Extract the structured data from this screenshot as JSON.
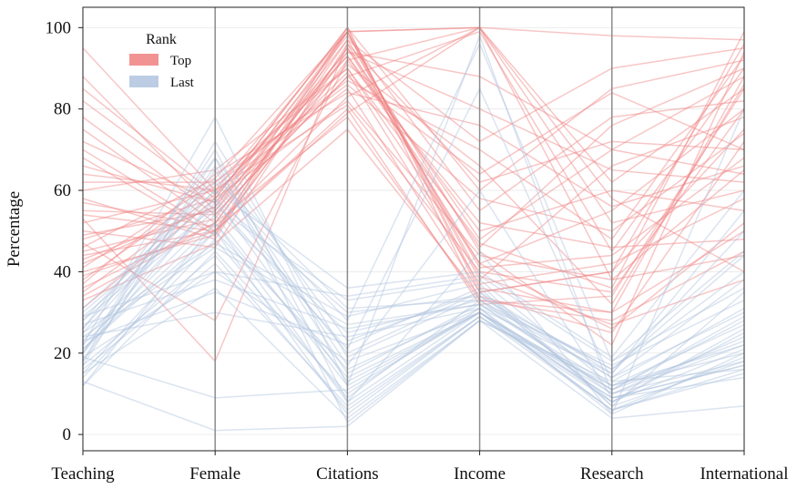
{
  "chart_data": {
    "type": "parallel_coordinates",
    "axes": [
      "Teaching",
      "Female",
      "Citations",
      "Income",
      "Research",
      "International"
    ],
    "ylabel": "Percentage",
    "ylim": [
      -4,
      105
    ],
    "yticks": [
      0,
      20,
      40,
      60,
      80,
      100
    ],
    "grid": true,
    "legend": {
      "title": "Rank",
      "placement": "top-left",
      "entries": [
        {
          "name": "Top",
          "color": "#f08080"
        },
        {
          "name": "Last",
          "color": "#b0c4de"
        }
      ]
    },
    "series": [
      {
        "name": "Top",
        "color": "#f08080",
        "lines": [
          [
            95,
            60,
            99,
            100,
            98,
            97
          ],
          [
            88,
            55,
            97,
            72,
            90,
            95
          ],
          [
            82,
            58,
            100,
            60,
            85,
            92
          ],
          [
            75,
            52,
            95,
            48,
            70,
            88
          ],
          [
            70,
            50,
            92,
            100,
            62,
            85
          ],
          [
            66,
            57,
            98,
            55,
            78,
            82
          ],
          [
            62,
            62,
            90,
            42,
            55,
            80
          ],
          [
            58,
            48,
            99,
            38,
            66,
            78
          ],
          [
            55,
            54,
            88,
            99,
            45,
            90
          ],
          [
            52,
            60,
            85,
            35,
            40,
            75
          ],
          [
            50,
            46,
            96,
            62,
            72,
            70
          ],
          [
            48,
            58,
            82,
            44,
            38,
            65
          ],
          [
            46,
            63,
            99,
            100,
            52,
            60
          ],
          [
            44,
            50,
            80,
            32,
            34,
            85
          ],
          [
            42,
            56,
            93,
            50,
            60,
            55
          ],
          [
            40,
            49,
            100,
            36,
            30,
            50
          ],
          [
            38,
            61,
            87,
            70,
            48,
            93
          ],
          [
            36,
            52,
            78,
            33,
            28,
            45
          ],
          [
            35,
            59,
            94,
            80,
            65,
            62
          ],
          [
            33,
            47,
            75,
            34,
            25,
            72
          ],
          [
            60,
            65,
            90,
            47,
            36,
            99
          ],
          [
            57,
            51,
            83,
            100,
            58,
            40
          ],
          [
            53,
            18,
            96,
            41,
            44,
            68
          ],
          [
            49,
            55,
            91,
            66,
            32,
            86
          ],
          [
            45,
            53,
            99,
            39,
            27,
            38
          ],
          [
            41,
            62,
            86,
            58,
            50,
            74
          ],
          [
            39,
            50,
            97,
            45,
            22,
            94
          ],
          [
            72,
            57,
            89,
            37,
            42,
            58
          ],
          [
            68,
            49,
            94,
            88,
            70,
            64
          ],
          [
            64,
            60,
            81,
            40,
            35,
            80
          ],
          [
            47,
            28,
            92,
            52,
            46,
            48
          ],
          [
            43,
            56,
            99,
            33,
            30,
            88
          ],
          [
            37,
            64,
            84,
            76,
            56,
            66
          ],
          [
            34,
            52,
            95,
            42,
            26,
            52
          ],
          [
            31,
            58,
            100,
            35,
            40,
            96
          ],
          [
            78,
            54,
            88,
            64,
            84,
            70
          ],
          [
            85,
            59,
            93,
            46,
            76,
            90
          ],
          [
            54,
            50,
            79,
            100,
            38,
            44
          ]
        ]
      },
      {
        "name": "Last",
        "color": "#b0c4de",
        "lines": [
          [
            22,
            78,
            12,
            98,
            10,
            18
          ],
          [
            20,
            70,
            8,
            30,
            6,
            15
          ],
          [
            18,
            65,
            15,
            32,
            12,
            22
          ],
          [
            25,
            60,
            20,
            35,
            8,
            25
          ],
          [
            28,
            55,
            25,
            33,
            14,
            30
          ],
          [
            15,
            50,
            5,
            29,
            9,
            17
          ],
          [
            12,
            45,
            10,
            31,
            5,
            20
          ],
          [
            30,
            58,
            30,
            34,
            16,
            40
          ],
          [
            19,
            40,
            18,
            30,
            11,
            28
          ],
          [
            23,
            35,
            22,
            36,
            7,
            35
          ],
          [
            17,
            68,
            3,
            28,
            13,
            16
          ],
          [
            26,
            62,
            28,
            96,
            18,
            45
          ],
          [
            21,
            52,
            14,
            30,
            6,
            19
          ],
          [
            14,
            48,
            9,
            33,
            10,
            24
          ],
          [
            24,
            30,
            24,
            31,
            15,
            50
          ],
          [
            29,
            56,
            33,
            38,
            12,
            27
          ],
          [
            16,
            42,
            7,
            29,
            8,
            21
          ],
          [
            20,
            66,
            17,
            60,
            9,
            14
          ],
          [
            27,
            38,
            26,
            32,
            17,
            33
          ],
          [
            13,
            1,
            2,
            28,
            4,
            7
          ],
          [
            22,
            54,
            12,
            30,
            11,
            23
          ],
          [
            18,
            72,
            19,
            34,
            14,
            38
          ],
          [
            25,
            47,
            29,
            37,
            7,
            18
          ],
          [
            31,
            60,
            36,
            40,
            19,
            60
          ],
          [
            19,
            9,
            11,
            30,
            10,
            22
          ],
          [
            23,
            57,
            21,
            85,
            13,
            31
          ],
          [
            17,
            44,
            6,
            29,
            6,
            16
          ],
          [
            28,
            63,
            31,
            33,
            16,
            44
          ],
          [
            21,
            50,
            16,
            31,
            8,
            26
          ],
          [
            15,
            36,
            4,
            28,
            12,
            20
          ],
          [
            26,
            68,
            23,
            35,
            15,
            55
          ],
          [
            20,
            58,
            13,
            30,
            9,
            17
          ],
          [
            24,
            46,
            27,
            32,
            11,
            29
          ],
          [
            12,
            52,
            8,
            45,
            5,
            80
          ],
          [
            29,
            40,
            34,
            39,
            18,
            36
          ]
        ]
      }
    ]
  }
}
